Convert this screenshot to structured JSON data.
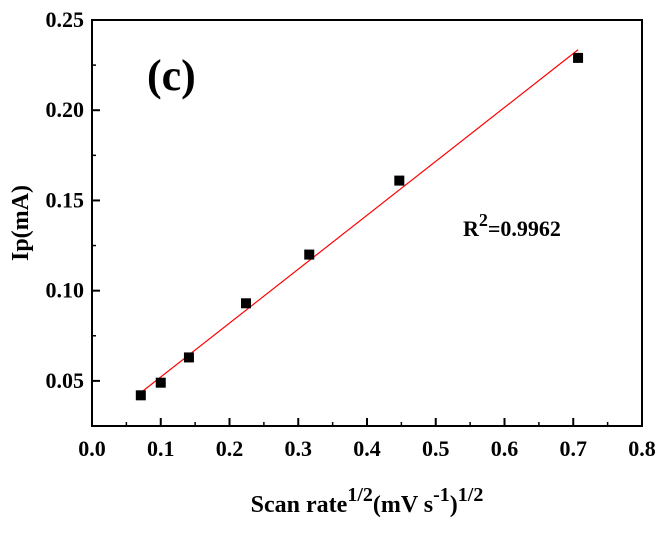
{
  "chart_data": {
    "type": "scatter",
    "panel_label": "(c)",
    "xlabel": {
      "main": "Scan rate",
      "sup1": "1/2",
      "unit_open": "(mV s",
      "sup2": "-1",
      "unit_close": ")",
      "sup3": "1/2"
    },
    "ylabel": "Ip(mA)",
    "xlim": [
      0.0,
      0.8
    ],
    "ylim": [
      0.025,
      0.25
    ],
    "xticks": [
      "0.0",
      "0.1",
      "0.2",
      "0.3",
      "0.4",
      "0.5",
      "0.6",
      "0.7",
      "0.8"
    ],
    "yticks": [
      "0.05",
      "0.10",
      "0.15",
      "0.20",
      "0.25"
    ],
    "series": [
      {
        "marker": "square",
        "color": "#000000",
        "x": [
          0.071,
          0.1,
          0.141,
          0.224,
          0.316,
          0.447,
          0.707
        ],
        "y": [
          0.042,
          0.049,
          0.063,
          0.093,
          0.12,
          0.161,
          0.229
        ]
      }
    ],
    "fit_line": {
      "color": "#ff0000",
      "x": [
        0.071,
        0.707
      ],
      "y": [
        0.0435,
        0.2335
      ]
    },
    "annotation": {
      "base": "R",
      "sup": "2",
      "value": "=0.9962"
    },
    "grid": false,
    "legend": "none"
  }
}
